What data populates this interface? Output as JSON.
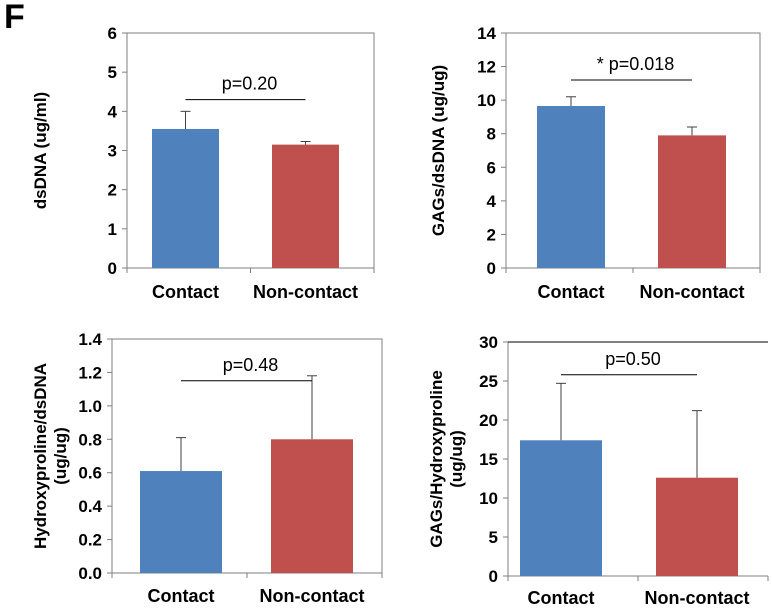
{
  "figure": {
    "panel_label": "F"
  },
  "colors": {
    "contact": "#4f81bd",
    "non_contact": "#c0504d",
    "axis": "#7f7f7f",
    "text": "#000000"
  },
  "chart_data": [
    {
      "type": "bar",
      "categories": [
        "Contact",
        "Non-contact"
      ],
      "values": [
        3.55,
        3.15
      ],
      "errors": [
        0.45,
        0.08
      ],
      "ylabel": "dsDNA  (ug/ml)",
      "ylim": [
        0,
        6
      ],
      "yticks": [
        0,
        1,
        2,
        3,
        4,
        5,
        6
      ],
      "tick_decimals": 0,
      "annotation": "p=0.20",
      "grid": false,
      "frame": "box"
    },
    {
      "type": "bar",
      "categories": [
        "Contact",
        "Non-contact"
      ],
      "values": [
        9.65,
        7.9
      ],
      "errors": [
        0.55,
        0.5
      ],
      "ylabel": "GAGs/dsDNA  (ug/ug)",
      "ylim": [
        0,
        14
      ],
      "yticks": [
        0,
        2,
        4,
        6,
        8,
        10,
        12,
        14
      ],
      "tick_decimals": 0,
      "annotation": "* p=0.018",
      "grid": false,
      "frame": "box"
    },
    {
      "type": "bar",
      "categories": [
        "Contact",
        "Non-contact"
      ],
      "values": [
        0.61,
        0.8
      ],
      "errors": [
        0.2,
        0.38
      ],
      "ylabel": "Hydroxyproline/dsDNA\n(ug/ug)",
      "ylim": [
        0,
        1.4
      ],
      "yticks": [
        0,
        0.2,
        0.4,
        0.6,
        0.8,
        1.0,
        1.2,
        1.4
      ],
      "tick_decimals": 1,
      "annotation": "p=0.48",
      "grid": false,
      "frame": "box"
    },
    {
      "type": "bar",
      "categories": [
        "Contact",
        "Non-contact"
      ],
      "values": [
        17.4,
        12.6
      ],
      "errors": [
        7.3,
        8.6
      ],
      "ylabel": "GAGs/Hydroxyproline\n(ug/ug)",
      "ylim": [
        0,
        30
      ],
      "yticks": [
        0,
        5,
        10,
        15,
        20,
        25,
        30
      ],
      "tick_decimals": 0,
      "annotation": "p=0.50",
      "grid": false,
      "frame": "open-right"
    }
  ]
}
